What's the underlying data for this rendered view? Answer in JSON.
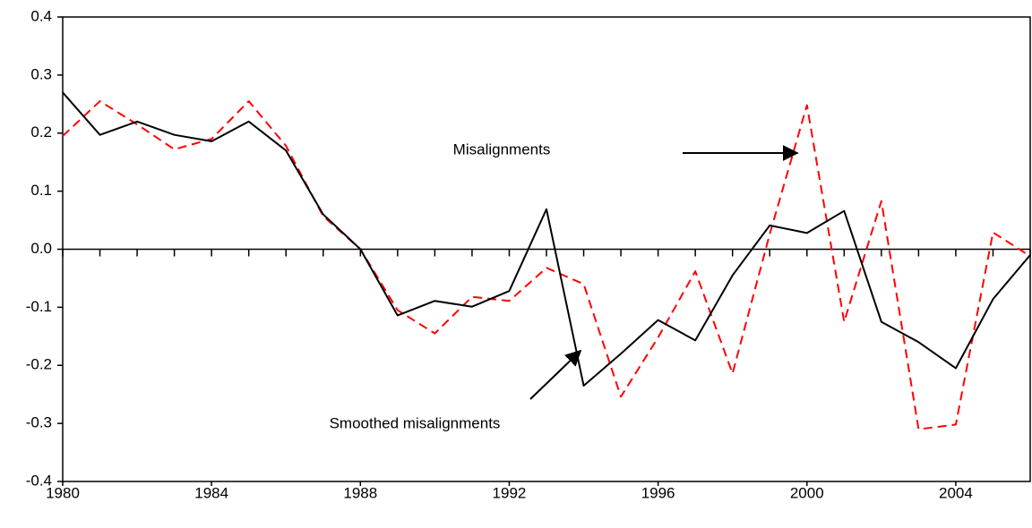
{
  "chart_data": {
    "type": "line",
    "x": [
      1980,
      1981,
      1982,
      1983,
      1984,
      1985,
      1986,
      1987,
      1988,
      1989,
      1990,
      1991,
      1992,
      1993,
      1994,
      1995,
      1996,
      1997,
      1998,
      1999,
      2000,
      2001,
      2002,
      2003,
      2004,
      2005,
      2006
    ],
    "series": [
      {
        "name": "Smoothed misalignments",
        "color": "#000000",
        "dash": false,
        "values": [
          0.27,
          0.197,
          0.22,
          0.197,
          0.186,
          0.22,
          0.17,
          0.06,
          0.0,
          -0.114,
          -0.089,
          -0.099,
          -0.072,
          0.069,
          -0.235,
          -0.18,
          -0.122,
          -0.157,
          -0.045,
          0.041,
          0.028,
          0.066,
          -0.125,
          -0.16,
          -0.205,
          -0.086,
          -0.01
        ]
      },
      {
        "name": "Misalignments",
        "color": "#ff0000",
        "dash": true,
        "values": [
          0.195,
          0.255,
          0.215,
          0.172,
          0.19,
          0.255,
          0.178,
          0.057,
          0.0,
          -0.105,
          -0.145,
          -0.082,
          -0.089,
          -0.032,
          -0.06,
          -0.254,
          -0.152,
          -0.038,
          -0.214,
          0.026,
          0.248,
          -0.125,
          0.083,
          -0.31,
          -0.302,
          0.029,
          -0.012
        ]
      }
    ],
    "xlim": [
      1980,
      2006
    ],
    "xticks": [
      1980,
      1984,
      1988,
      1992,
      1996,
      2000,
      2004
    ],
    "ylim": [
      -0.4,
      0.4
    ],
    "yticks": [
      -0.4,
      -0.3,
      -0.2,
      -0.1,
      {
        "value": 0,
        "label": "0.0"
      },
      0.1,
      0.2,
      0.3,
      0.4
    ]
  }
}
